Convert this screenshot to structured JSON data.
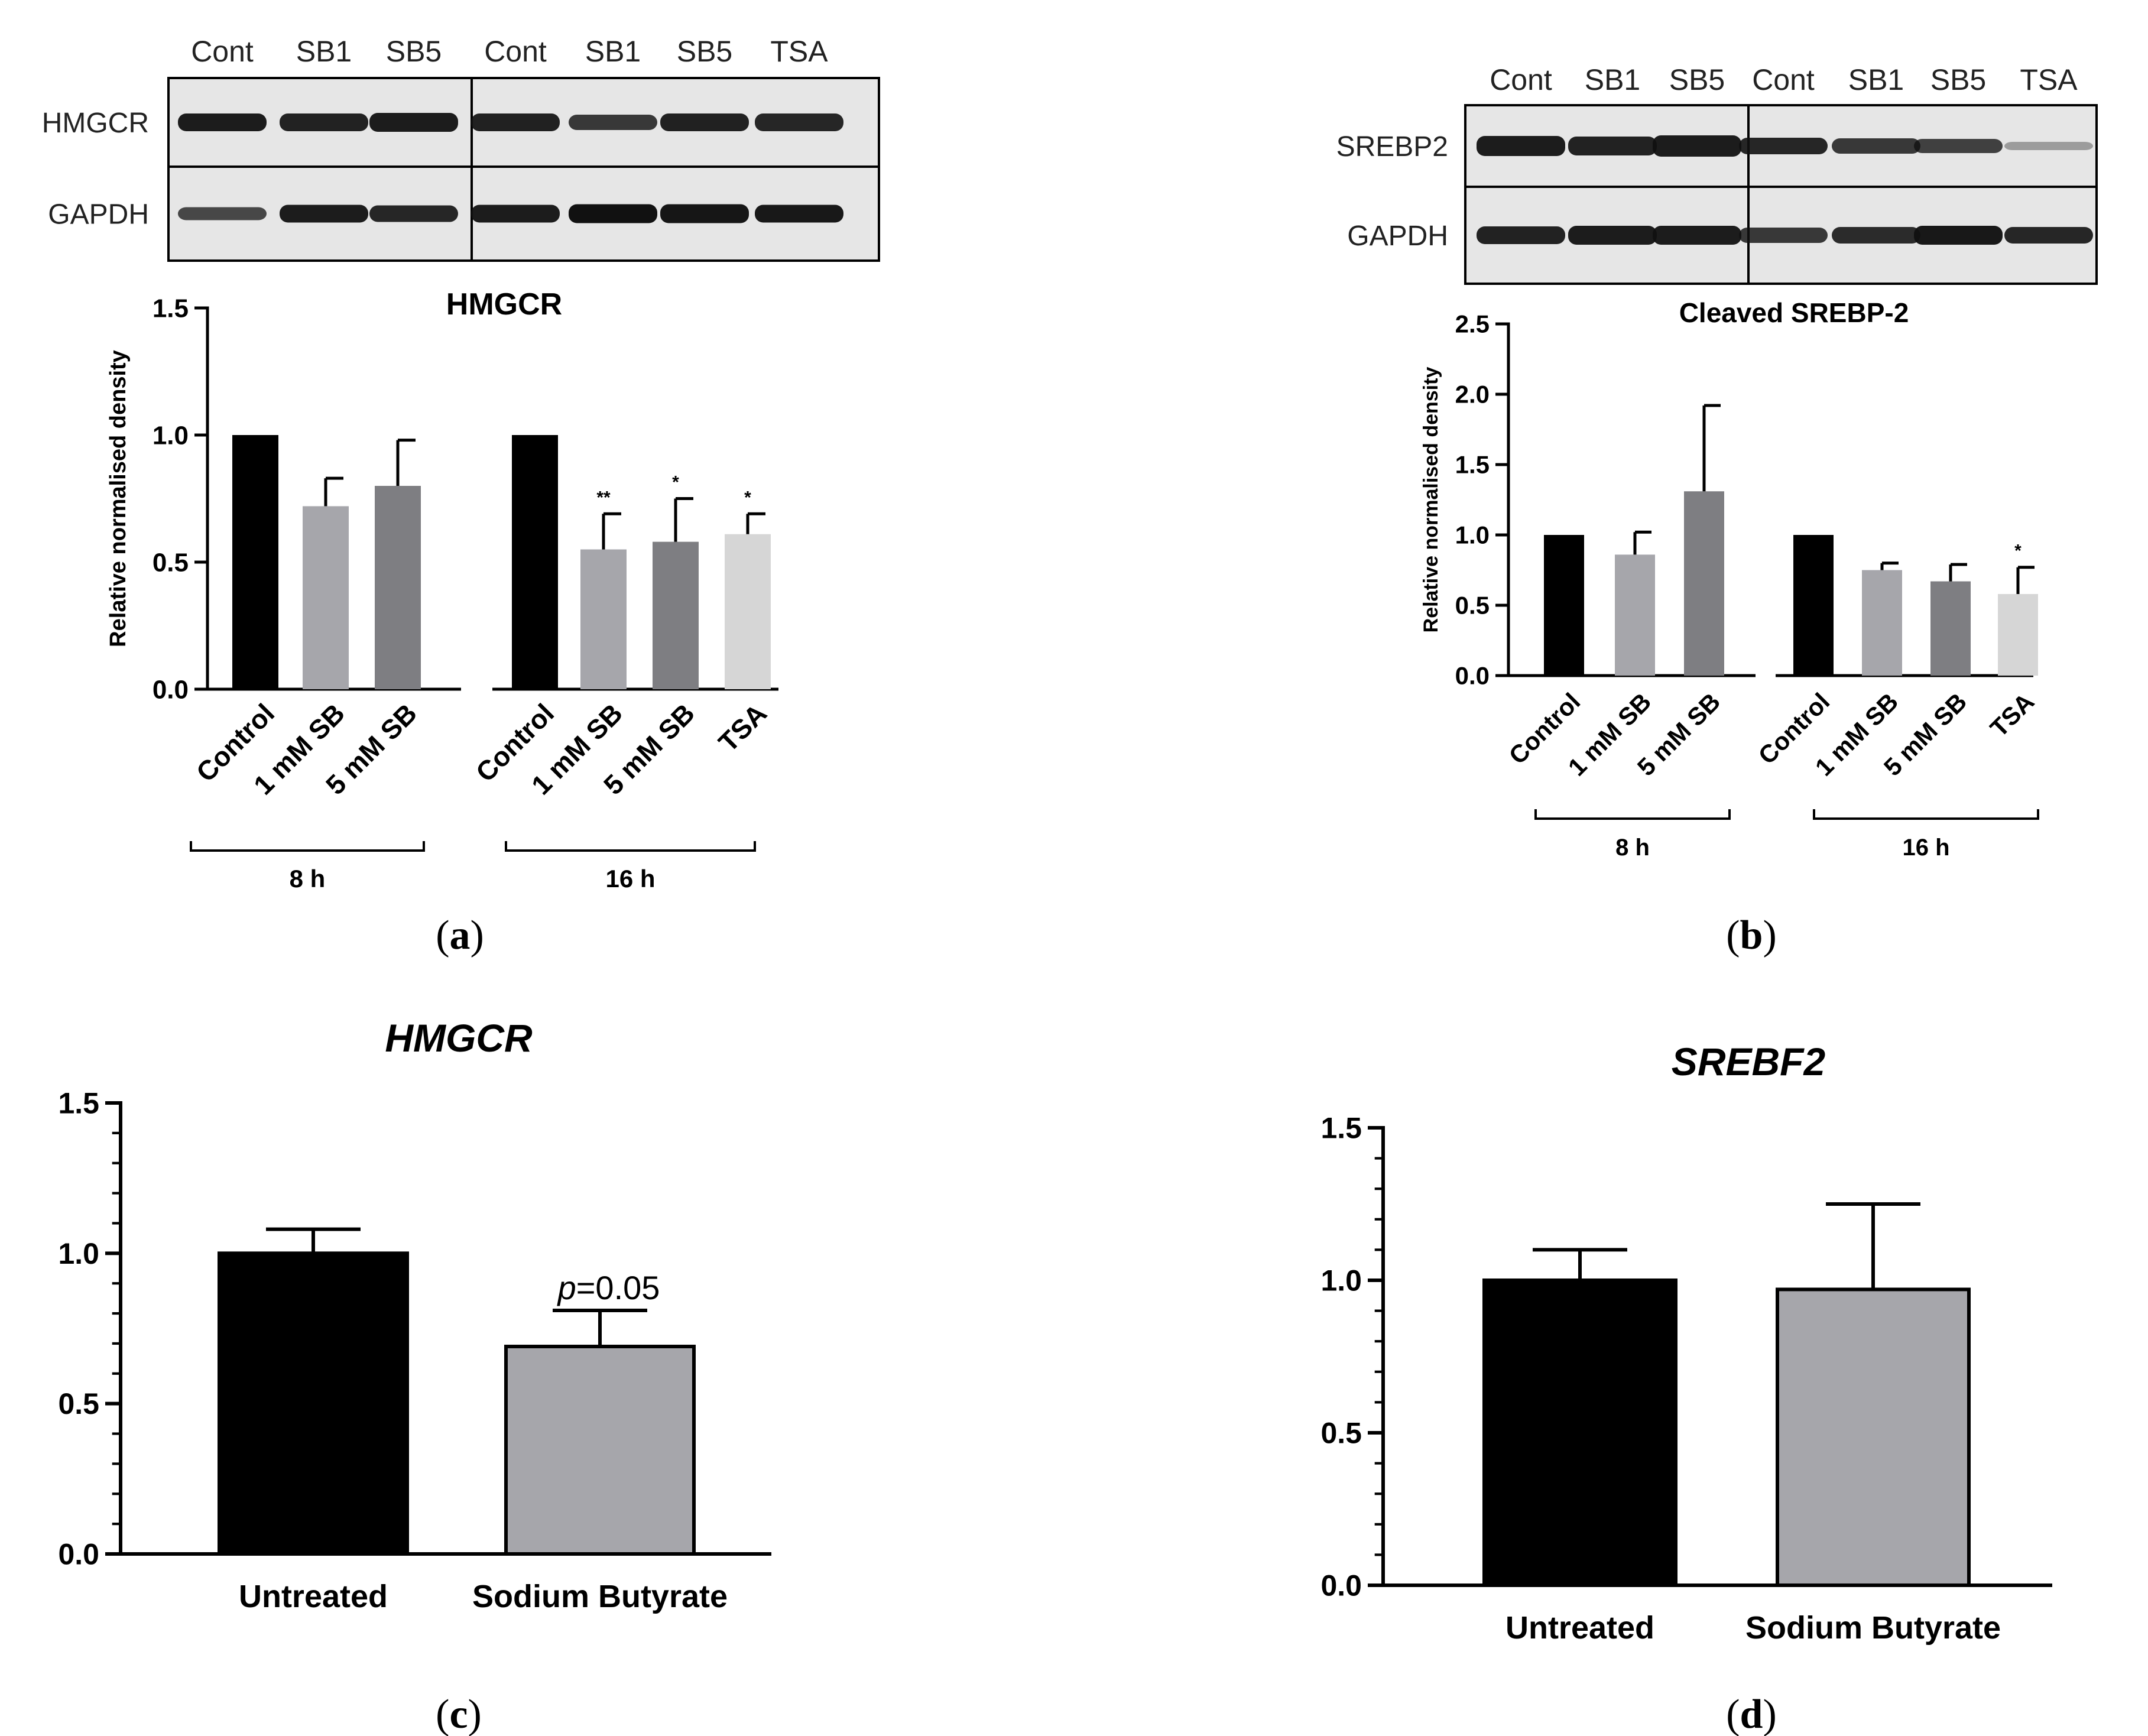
{
  "colors": {
    "black": "#000000",
    "light_gray": "#a6a6ab",
    "dark_gray": "#7e7e82",
    "pale_gray": "#d6d6d6",
    "blot_bg": "#e6e6e6"
  },
  "panels": {
    "a": {
      "letter": "a",
      "blot": {
        "lanes": [
          "Cont",
          "SB1",
          "SB5",
          "Cont",
          "SB1",
          "SB5",
          "TSA"
        ],
        "rows": [
          "HMGCR",
          "GAPDH"
        ]
      }
    },
    "b": {
      "letter": "b",
      "blot": {
        "lanes": [
          "Cont",
          "SB1",
          "SB5",
          "Cont",
          "SB1",
          "SB5",
          "TSA"
        ],
        "rows": [
          "SREBP2",
          "GAPDH"
        ]
      }
    },
    "c": {
      "letter": "c"
    },
    "d": {
      "letter": "d"
    }
  },
  "chart_data": [
    {
      "id": "a",
      "type": "bar",
      "title": "HMGCR",
      "ylabel": "Relative normalised density",
      "ylim": [
        0,
        1.5
      ],
      "yticks": [
        "0.0",
        "0.5",
        "1.0",
        "1.5"
      ],
      "groups": [
        {
          "label": "8 h",
          "categories": [
            "Control",
            "1 mM SB",
            "5 mM SB"
          ]
        },
        {
          "label": "16 h",
          "categories": [
            "Control",
            "1 mM SB",
            "5 mM SB",
            "TSA"
          ]
        }
      ],
      "values": [
        1.0,
        0.72,
        0.8,
        1.0,
        0.55,
        0.58,
        0.61
      ],
      "errors": [
        0,
        0.11,
        0.18,
        0,
        0.14,
        0.17,
        0.08
      ],
      "significance": [
        "",
        "",
        "",
        "",
        "**",
        "*",
        "*"
      ],
      "bar_colors": [
        "black",
        "light_gray",
        "dark_gray",
        "black",
        "light_gray",
        "dark_gray",
        "pale_gray"
      ]
    },
    {
      "id": "b",
      "type": "bar",
      "title": "Cleaved SREBP-2",
      "ylabel": "Relative normalised density",
      "ylim": [
        0,
        2.5
      ],
      "yticks": [
        "0.0",
        "0.5",
        "1.0",
        "1.5",
        "2.0",
        "2.5"
      ],
      "groups": [
        {
          "label": "8 h",
          "categories": [
            "Control",
            "1 mM SB",
            "5 mM SB"
          ]
        },
        {
          "label": "16 h",
          "categories": [
            "Control",
            "1 mM SB",
            "5 mM SB",
            "TSA"
          ]
        }
      ],
      "values": [
        1.0,
        0.86,
        1.31,
        1.0,
        0.75,
        0.67,
        0.58
      ],
      "errors": [
        0,
        0.16,
        0.61,
        0,
        0.05,
        0.12,
        0.19
      ],
      "significance": [
        "",
        "",
        "",
        "",
        "",
        "",
        "*"
      ],
      "bar_colors": [
        "black",
        "light_gray",
        "dark_gray",
        "black",
        "light_gray",
        "dark_gray",
        "pale_gray"
      ]
    },
    {
      "id": "c",
      "type": "bar",
      "title": "HMGCR",
      "ylim": [
        0,
        1.5
      ],
      "yticks": [
        "0.0",
        "0.5",
        "1.0",
        "1.5"
      ],
      "categories": [
        "Untreated",
        "Sodium Butyrate"
      ],
      "values": [
        1.0,
        0.69
      ],
      "errors": [
        0.08,
        0.12
      ],
      "annotation": {
        "italic": "p",
        "text": "=0.05"
      },
      "bar_colors": [
        "black",
        "light_gray"
      ]
    },
    {
      "id": "d",
      "type": "bar",
      "title": "SREBF2",
      "ylim": [
        0,
        1.5
      ],
      "yticks": [
        "0.0",
        "0.5",
        "1.0",
        "1.5"
      ],
      "categories": [
        "Untreated",
        "Sodium Butyrate"
      ],
      "values": [
        1.0,
        0.97
      ],
      "errors": [
        0.1,
        0.28
      ],
      "bar_colors": [
        "black",
        "light_gray"
      ]
    }
  ]
}
